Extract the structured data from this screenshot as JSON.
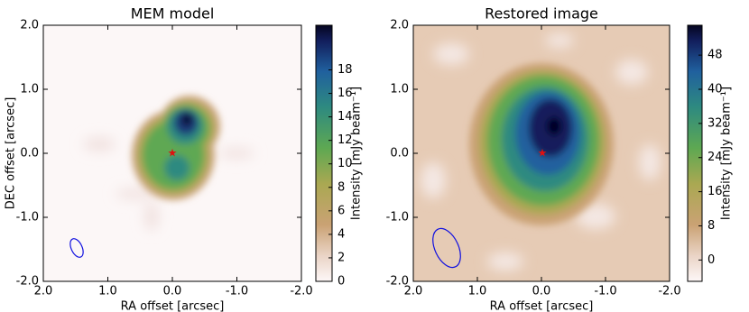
{
  "chart_data": [
    {
      "type": "image",
      "title": "MEM model",
      "xlabel": "RA offset [arcsec]",
      "ylabel": "DEC offset [arcsec]",
      "xlim": [
        2,
        -2
      ],
      "ylim": [
        -2,
        2
      ],
      "xticks": [
        {
          "value": 2,
          "label": "2.0"
        },
        {
          "value": 1,
          "label": "1.0"
        },
        {
          "value": 0,
          "label": "0.0"
        },
        {
          "value": -1,
          "label": "-1.0"
        },
        {
          "value": -2,
          "label": "-2.0"
        }
      ],
      "yticks": [
        {
          "value": 2,
          "label": "2.0"
        },
        {
          "value": 1,
          "label": "1.0"
        },
        {
          "value": 0,
          "label": "0.0"
        },
        {
          "value": -1,
          "label": "-1.0"
        },
        {
          "value": -2,
          "label": "-2.0"
        }
      ],
      "colorbar": {
        "label": "Intensity [mJy beam⁻¹]",
        "lim": [
          0,
          21.8
        ],
        "ticks": [
          0,
          2,
          4,
          6,
          8,
          10,
          12,
          14,
          16,
          18
        ]
      }
    },
    {
      "type": "image",
      "title": "Restored image",
      "xlabel": "RA offset [arcsec]",
      "xlim": [
        2,
        -2
      ],
      "ylim": [
        -2,
        2
      ],
      "xticks": [
        {
          "value": 2,
          "label": "2.0"
        },
        {
          "value": 1,
          "label": "1.0"
        },
        {
          "value": 0,
          "label": "0.0"
        },
        {
          "value": -1,
          "label": "-1.0"
        },
        {
          "value": -2,
          "label": "-2.0"
        }
      ],
      "yticks": [
        {
          "value": 2,
          "label": "2.0"
        },
        {
          "value": 1,
          "label": "1.0"
        },
        {
          "value": 0,
          "label": "0.0"
        },
        {
          "value": -1,
          "label": "-1.0"
        },
        {
          "value": -2,
          "label": "-2.0"
        }
      ],
      "colorbar": {
        "label": "Intensity [mJy beam⁻¹]",
        "lim": [
          -5,
          55
        ],
        "ticks": [
          0,
          8,
          16,
          24,
          32,
          40,
          48
        ]
      }
    }
  ]
}
